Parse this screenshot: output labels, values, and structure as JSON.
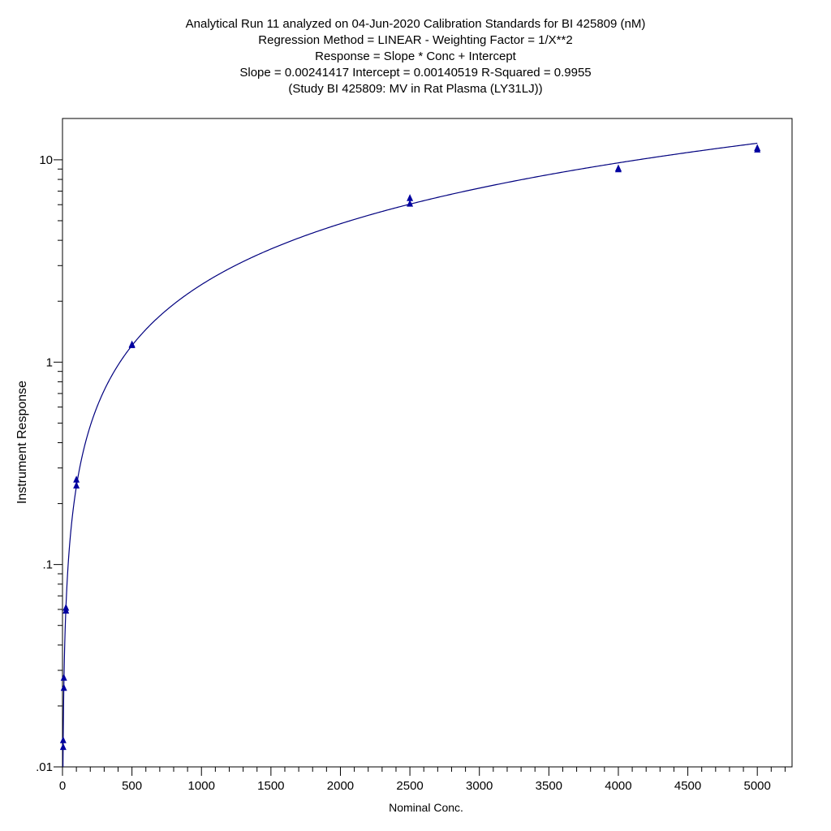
{
  "chart_data": {
    "type": "scatter",
    "title_lines": [
      "Analytical Run 11 analyzed on 04-Jun-2020 Calibration Standards for BI 425809 (nM)",
      "Regression Method = LINEAR - Weighting Factor = 1/X**2",
      "Response = Slope * Conc + Intercept",
      "Slope = 0.00241417 Intercept = 0.00140519 R-Squared = 0.9955",
      "(Study BI 425809: MV in Rat Plasma (LY31LJ))"
    ],
    "xlabel": "Nominal Conc.",
    "ylabel": "Instrument Response",
    "y_scale": "log",
    "xlim": [
      0,
      5250
    ],
    "ylim": [
      0.01,
      16
    ],
    "x_ticks": [
      0,
      500,
      1000,
      1500,
      2000,
      2500,
      3000,
      3500,
      4000,
      4500,
      5000
    ],
    "x_tick_labels": [
      "0",
      "500",
      "1000",
      "1500",
      "2000",
      "2500",
      "3000",
      "3500",
      "4000",
      "4500",
      "5000"
    ],
    "y_ticks": [
      0.01,
      0.1,
      1,
      10
    ],
    "y_tick_labels": [
      ".01",
      ".1",
      "1",
      "10"
    ],
    "x_minor_step": 100,
    "grid": false,
    "legend": "none",
    "regression": {
      "slope": 0.00241417,
      "intercept": 0.00140519
    },
    "points": [
      {
        "x": 5,
        "y": 0.0125
      },
      {
        "x": 5,
        "y": 0.0135
      },
      {
        "x": 10,
        "y": 0.0245
      },
      {
        "x": 10,
        "y": 0.0275
      },
      {
        "x": 25,
        "y": 0.059
      },
      {
        "x": 25,
        "y": 0.061
      },
      {
        "x": 100,
        "y": 0.245
      },
      {
        "x": 100,
        "y": 0.262
      },
      {
        "x": 500,
        "y": 1.21
      },
      {
        "x": 500,
        "y": 1.22
      },
      {
        "x": 2500,
        "y": 6.05
      },
      {
        "x": 2500,
        "y": 6.45
      },
      {
        "x": 4000,
        "y": 8.95
      },
      {
        "x": 4000,
        "y": 9.05
      },
      {
        "x": 5000,
        "y": 11.2
      },
      {
        "x": 5000,
        "y": 11.4
      }
    ],
    "colors": {
      "curve": "#00007f",
      "points": "#0000a0",
      "axes": "#000000"
    }
  }
}
